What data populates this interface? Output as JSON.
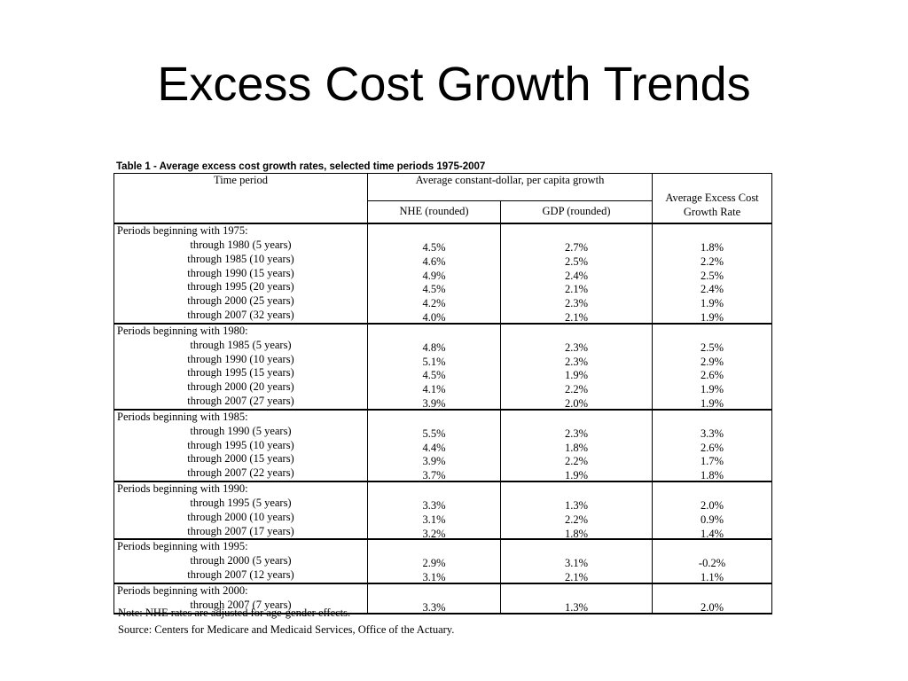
{
  "title": "Excess Cost Growth Trends",
  "table": {
    "caption": "Table 1 - Average excess cost growth rates, selected time periods 1975-2007",
    "headers": {
      "time_period": "Time period",
      "group": "Average constant-dollar, per capita growth",
      "nhe": "NHE (rounded)",
      "gdp": "GDP (rounded)",
      "excess": "Average Excess Cost Growth Rate"
    },
    "groups": [
      {
        "label": "Periods beginning with 1975:",
        "rows": [
          {
            "period": "through 1980 (5 years)",
            "nhe": "4.5%",
            "gdp": "2.7%",
            "excess": "1.8%"
          },
          {
            "period": "through 1985 (10 years)",
            "nhe": "4.6%",
            "gdp": "2.5%",
            "excess": "2.2%"
          },
          {
            "period": "through 1990 (15 years)",
            "nhe": "4.9%",
            "gdp": "2.4%",
            "excess": "2.5%"
          },
          {
            "period": "through 1995 (20 years)",
            "nhe": "4.5%",
            "gdp": "2.1%",
            "excess": "2.4%"
          },
          {
            "period": "through 2000 (25 years)",
            "nhe": "4.2%",
            "gdp": "2.3%",
            "excess": "1.9%"
          },
          {
            "period": "through 2007 (32 years)",
            "nhe": "4.0%",
            "gdp": "2.1%",
            "excess": "1.9%"
          }
        ]
      },
      {
        "label": "Periods beginning with 1980:",
        "rows": [
          {
            "period": "through 1985 (5 years)",
            "nhe": "4.8%",
            "gdp": "2.3%",
            "excess": "2.5%"
          },
          {
            "period": "through 1990 (10 years)",
            "nhe": "5.1%",
            "gdp": "2.3%",
            "excess": "2.9%"
          },
          {
            "period": "through 1995 (15 years)",
            "nhe": "4.5%",
            "gdp": "1.9%",
            "excess": "2.6%"
          },
          {
            "period": "through 2000 (20 years)",
            "nhe": "4.1%",
            "gdp": "2.2%",
            "excess": "1.9%"
          },
          {
            "period": "through 2007 (27 years)",
            "nhe": "3.9%",
            "gdp": "2.0%",
            "excess": "1.9%"
          }
        ]
      },
      {
        "label": "Periods beginning with 1985:",
        "rows": [
          {
            "period": "through 1990 (5 years)",
            "nhe": "5.5%",
            "gdp": "2.3%",
            "excess": "3.3%"
          },
          {
            "period": "through 1995 (10 years)",
            "nhe": "4.4%",
            "gdp": "1.8%",
            "excess": "2.6%"
          },
          {
            "period": "through 2000 (15 years)",
            "nhe": "3.9%",
            "gdp": "2.2%",
            "excess": "1.7%"
          },
          {
            "period": "through 2007 (22 years)",
            "nhe": "3.7%",
            "gdp": "1.9%",
            "excess": "1.8%"
          }
        ]
      },
      {
        "label": "Periods beginning with 1990:",
        "rows": [
          {
            "period": "through 1995 (5 years)",
            "nhe": "3.3%",
            "gdp": "1.3%",
            "excess": "2.0%"
          },
          {
            "period": "through 2000 (10 years)",
            "nhe": "3.1%",
            "gdp": "2.2%",
            "excess": "0.9%"
          },
          {
            "period": "through 2007 (17 years)",
            "nhe": "3.2%",
            "gdp": "1.8%",
            "excess": "1.4%"
          }
        ]
      },
      {
        "label": "Periods beginning with 1995:",
        "rows": [
          {
            "period": "through 2000 (5 years)",
            "nhe": "2.9%",
            "gdp": "3.1%",
            "excess": "-0.2%"
          },
          {
            "period": "through 2007 (12 years)",
            "nhe": "3.1%",
            "gdp": "2.1%",
            "excess": "1.1%"
          }
        ]
      },
      {
        "label": "Periods beginning with 2000:",
        "rows": [
          {
            "period": "through 2007 (7 years)",
            "nhe": "3.3%",
            "gdp": "1.3%",
            "excess": "2.0%"
          }
        ]
      }
    ],
    "note": "Note: NHE rates are adjusted for age-gender effects.",
    "source": "Source: Centers for Medicare and Medicaid Services, Office of the Actuary."
  }
}
